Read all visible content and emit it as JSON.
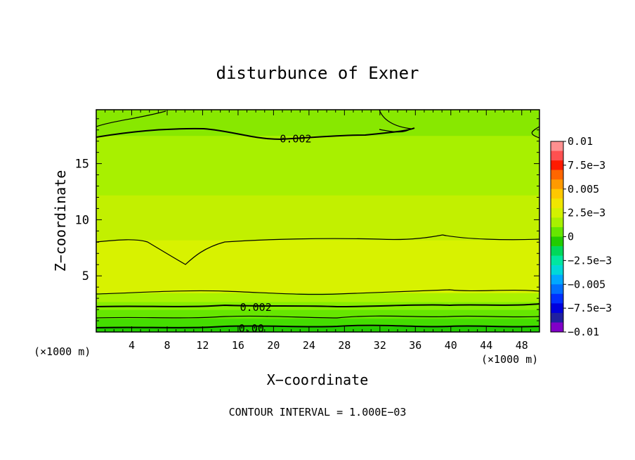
{
  "chart_data": {
    "type": "heatmap",
    "title": "disturbunce of Exner",
    "xlabel": "X−coordinate",
    "ylabel": "Z−coordinate",
    "x_unit_left": "(×1000 m)",
    "x_unit_right": "(×1000 m)",
    "xlim": [
      0,
      50
    ],
    "ylim": [
      0,
      19.8
    ],
    "x_ticks": [
      4,
      8,
      12,
      16,
      20,
      24,
      28,
      32,
      36,
      40,
      44,
      48
    ],
    "y_ticks": [
      5,
      10,
      15
    ],
    "footer": "CONTOUR INTERVAL = 1.000E−03",
    "contour_labels": [
      {
        "text": "0.002",
        "x": 22.5,
        "z": 17.2
      },
      {
        "text": "0.002",
        "x": 18,
        "z": 2.2
      },
      {
        "text": "0.00",
        "x": 17.5,
        "z": 0.3
      }
    ],
    "bands": [
      {
        "z_from": 0.0,
        "z_to": 0.5,
        "value": 0.0005,
        "color": "#22cc00"
      },
      {
        "z_from": 0.5,
        "z_to": 1.2,
        "value": 0.001,
        "color": "#44dd00"
      },
      {
        "z_from": 1.2,
        "z_to": 2.0,
        "value": 0.0015,
        "color": "#66e600"
      },
      {
        "z_from": 2.0,
        "z_to": 2.7,
        "value": 0.002,
        "color": "#88ee00"
      },
      {
        "z_from": 2.7,
        "z_to": 3.5,
        "value": 0.0025,
        "color": "#aaf200"
      },
      {
        "z_from": 3.5,
        "z_to": 8.2,
        "value": 0.003,
        "color": "#d8f200"
      },
      {
        "z_from": 8.2,
        "z_to": 12.2,
        "value": 0.0028,
        "color": "#c2f000"
      },
      {
        "z_from": 12.2,
        "z_to": 17.5,
        "value": 0.0024,
        "color": "#a8f000"
      },
      {
        "z_from": 17.5,
        "z_to": 19.8,
        "value": 0.0018,
        "color": "#88e800"
      }
    ],
    "colorbar": {
      "ticks": [
        "0.01",
        "7.5e−3",
        "0.005",
        "2.5e−3",
        "0",
        "−2.5e−3",
        "−0.005",
        "−7.5e−3",
        "−0.01"
      ],
      "colors": [
        "#ff9090",
        "#ff5050",
        "#ff1a00",
        "#ff6600",
        "#ff9a00",
        "#ffc800",
        "#f0e600",
        "#d2f200",
        "#a8f000",
        "#66e600",
        "#22cc00",
        "#00d85a",
        "#00e6a0",
        "#00d8d8",
        "#00a8ff",
        "#0070ff",
        "#0030ff",
        "#0000dd",
        "#2020a0",
        "#8000c8"
      ]
    }
  }
}
